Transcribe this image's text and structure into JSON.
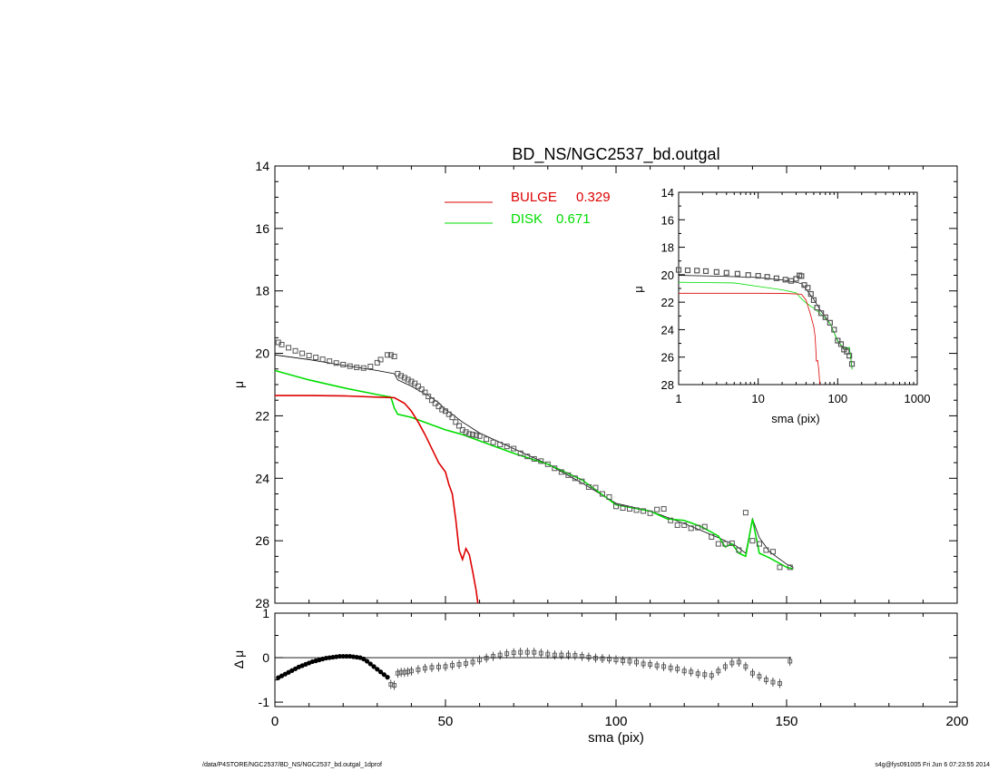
{
  "footer": {
    "path": "/data/P4STORE/NGC2537/BD_NS/NGC2537_bd.outgal_1dprof",
    "stamp": "s4g@fys091005  Fri Jun  6 07:23:55 2014"
  },
  "colors": {
    "bulge": "#dd0000",
    "disk": "#00dd00",
    "total": "#000000",
    "data": "#555555"
  },
  "chart_data": [
    {
      "panel": "main",
      "type": "line",
      "title": "BD_NS/NGC2537_bd.outgal",
      "ylabel": "μ",
      "xlim": [
        0,
        200
      ],
      "ylim": [
        28,
        14
      ],
      "yticks": [
        "14",
        "16",
        "18",
        "20",
        "22",
        "24",
        "26",
        "28"
      ],
      "grid": false,
      "legend_position": "top",
      "legend": [
        {
          "series": "bulge",
          "label": "BULGE",
          "value": "0.329"
        },
        {
          "series": "disk",
          "label": "DISK",
          "value": "0.671"
        }
      ],
      "observed": {
        "x": [
          1,
          2,
          4,
          6,
          8,
          10,
          12,
          14,
          16,
          18,
          20,
          22,
          24,
          26,
          28,
          30,
          31,
          33,
          34,
          35,
          36,
          37,
          38,
          39,
          40,
          41,
          42,
          43,
          44,
          45,
          46,
          47,
          48,
          49,
          50,
          51,
          52,
          53,
          54,
          55,
          56,
          57,
          58,
          59,
          60,
          62,
          64,
          66,
          68,
          70,
          72,
          74,
          76,
          78,
          80,
          82,
          84,
          86,
          88,
          90,
          92,
          94,
          96,
          98,
          100,
          102,
          104,
          106,
          108,
          110,
          112,
          114,
          116,
          118,
          120,
          122,
          124,
          126,
          128,
          130,
          132,
          134,
          136,
          138,
          140,
          142,
          144,
          146,
          148,
          151
        ],
        "y": [
          19.65,
          19.72,
          19.82,
          19.92,
          20.0,
          20.07,
          20.13,
          20.19,
          20.25,
          20.31,
          20.36,
          20.41,
          20.45,
          20.47,
          20.42,
          20.3,
          20.2,
          20.05,
          20.05,
          20.1,
          20.65,
          20.72,
          20.78,
          20.84,
          20.9,
          20.96,
          21.05,
          21.15,
          21.25,
          21.38,
          21.5,
          21.6,
          21.7,
          21.8,
          21.85,
          21.95,
          22.05,
          22.2,
          22.32,
          22.45,
          22.52,
          22.58,
          22.6,
          22.62,
          22.65,
          22.75,
          22.85,
          22.92,
          22.98,
          23.05,
          23.2,
          23.3,
          23.38,
          23.45,
          23.55,
          23.68,
          23.8,
          23.9,
          24.0,
          24.1,
          24.28,
          24.3,
          24.5,
          24.6,
          24.9,
          24.95,
          24.98,
          25.02,
          25.05,
          25.12,
          25.0,
          24.98,
          25.35,
          25.5,
          25.5,
          25.6,
          25.58,
          25.55,
          25.88,
          26.1,
          26.1,
          26.08,
          26.3,
          25.1,
          26.0,
          26.1,
          26.3,
          26.35,
          26.85,
          26.85
        ]
      },
      "total": {
        "x": [
          0,
          10,
          20,
          30,
          35,
          36,
          38,
          40,
          42,
          45,
          48,
          50,
          52,
          55,
          60,
          70,
          80,
          90,
          100,
          110,
          120,
          130,
          135,
          138,
          140,
          142,
          145,
          150,
          152
        ],
        "y": [
          20.05,
          20.2,
          20.38,
          20.55,
          20.65,
          20.85,
          20.95,
          21.05,
          21.18,
          21.35,
          21.58,
          21.8,
          21.95,
          22.2,
          22.55,
          23.05,
          23.55,
          24.15,
          24.8,
          25.05,
          25.45,
          25.9,
          26.15,
          26.4,
          25.3,
          25.9,
          26.35,
          26.75,
          26.85
        ]
      },
      "bulge": {
        "x": [
          0,
          10,
          20,
          30,
          35,
          38,
          40,
          42,
          44,
          46,
          48,
          50,
          51,
          52,
          53,
          54,
          55,
          56,
          57,
          58,
          59,
          59.5
        ],
        "y": [
          21.35,
          21.35,
          21.36,
          21.4,
          21.42,
          21.6,
          21.85,
          22.2,
          22.6,
          23.05,
          23.5,
          23.8,
          24.2,
          24.5,
          25.3,
          26.3,
          26.6,
          26.25,
          26.45,
          27.0,
          27.6,
          28.0
        ]
      },
      "disk": {
        "x": [
          0,
          10,
          20,
          30,
          34,
          35,
          36,
          40,
          45,
          50,
          55,
          60,
          70,
          80,
          90,
          100,
          105,
          110,
          115,
          120,
          125,
          130,
          132,
          134,
          136,
          138,
          140,
          142,
          145,
          150,
          152
        ],
        "y": [
          20.55,
          20.85,
          21.1,
          21.32,
          21.4,
          21.75,
          21.95,
          22.05,
          22.25,
          22.45,
          22.6,
          22.8,
          23.2,
          23.55,
          24.05,
          24.85,
          24.95,
          25.05,
          25.3,
          25.35,
          25.55,
          25.85,
          26.2,
          26.1,
          26.4,
          26.5,
          25.3,
          26.4,
          26.55,
          26.85,
          26.9
        ]
      }
    },
    {
      "panel": "inset",
      "type": "line",
      "xlabel": "sma (pix)",
      "ylabel": "μ",
      "xscale": "log",
      "xlim": [
        1,
        1000
      ],
      "ylim": [
        28,
        14
      ],
      "xticks": [
        "1",
        "10",
        "100",
        "1000"
      ],
      "yticks": [
        "14",
        "16",
        "18",
        "20",
        "22",
        "24",
        "26",
        "28"
      ],
      "observed": {
        "x": [
          1.0,
          1.3,
          1.7,
          2.2,
          3.0,
          4.0,
          5.5,
          7.5,
          10,
          13,
          17,
          22,
          26,
          30,
          33,
          35,
          38,
          42,
          46,
          50,
          55,
          62,
          70,
          80,
          90,
          100,
          110,
          120,
          130,
          140,
          151
        ],
        "y": [
          19.65,
          19.68,
          19.7,
          19.74,
          19.8,
          19.86,
          19.93,
          20.02,
          20.08,
          20.16,
          20.26,
          20.36,
          20.45,
          20.3,
          20.05,
          20.1,
          20.75,
          20.95,
          21.4,
          21.85,
          22.4,
          22.8,
          23.1,
          23.5,
          24.0,
          24.8,
          25.05,
          25.45,
          25.6,
          25.9,
          26.5
        ]
      },
      "total": {
        "x": [
          1,
          3,
          10,
          20,
          30,
          35,
          40,
          50,
          60,
          80,
          100,
          120,
          140,
          152
        ],
        "y": [
          20.05,
          20.1,
          20.2,
          20.38,
          20.55,
          20.65,
          21.05,
          21.8,
          22.55,
          23.55,
          24.8,
          25.45,
          25.3,
          26.85
        ]
      },
      "bulge": {
        "x": [
          1,
          5,
          10,
          20,
          30,
          35,
          40,
          45,
          50,
          52,
          54,
          56,
          58,
          59.5
        ],
        "y": [
          21.35,
          21.35,
          21.35,
          21.36,
          21.4,
          21.42,
          21.85,
          22.8,
          23.8,
          24.5,
          26.3,
          26.25,
          27.0,
          28.0
        ]
      },
      "disk": {
        "x": [
          1,
          5,
          10,
          20,
          30,
          35,
          40,
          50,
          60,
          80,
          100,
          120,
          140,
          152
        ],
        "y": [
          20.55,
          20.6,
          20.85,
          21.1,
          21.32,
          21.75,
          22.05,
          22.45,
          22.8,
          23.55,
          24.85,
          25.35,
          25.3,
          26.9
        ]
      }
    },
    {
      "panel": "residual",
      "type": "scatter",
      "xlabel": "sma (pix)",
      "ylabel": "Δ μ",
      "xlim": [
        0,
        200
      ],
      "ylim": [
        -1.1,
        1.0
      ],
      "xticks": [
        "0",
        "50",
        "100",
        "150",
        "200"
      ],
      "yticks": [
        "1",
        "0",
        "-1"
      ],
      "reference_line": 0,
      "x": [
        1,
        2,
        3,
        4,
        5,
        6,
        7,
        8,
        9,
        10,
        11,
        12,
        13,
        14,
        15,
        16,
        17,
        18,
        19,
        20,
        21,
        22,
        23,
        24,
        25,
        26,
        27,
        28,
        29,
        30,
        31,
        32,
        33,
        34,
        35,
        36,
        37,
        38,
        39,
        40,
        42,
        44,
        46,
        48,
        50,
        52,
        54,
        56,
        58,
        60,
        62,
        64,
        66,
        68,
        70,
        72,
        74,
        76,
        78,
        80,
        82,
        84,
        86,
        88,
        90,
        92,
        94,
        96,
        98,
        100,
        102,
        104,
        106,
        108,
        110,
        112,
        114,
        116,
        118,
        120,
        122,
        124,
        126,
        128,
        130,
        132,
        134,
        136,
        138,
        140,
        142,
        144,
        146,
        148,
        151
      ],
      "y": [
        -0.45,
        -0.41,
        -0.37,
        -0.33,
        -0.29,
        -0.25,
        -0.21,
        -0.18,
        -0.15,
        -0.12,
        -0.09,
        -0.07,
        -0.05,
        -0.03,
        -0.01,
        0.0,
        0.01,
        0.02,
        0.03,
        0.03,
        0.03,
        0.03,
        0.02,
        0.01,
        0.0,
        -0.03,
        -0.08,
        -0.14,
        -0.2,
        -0.26,
        -0.32,
        -0.38,
        -0.44,
        -0.6,
        -0.62,
        -0.35,
        -0.33,
        -0.33,
        -0.32,
        -0.3,
        -0.27,
        -0.24,
        -0.22,
        -0.21,
        -0.2,
        -0.17,
        -0.15,
        -0.13,
        -0.1,
        -0.05,
        -0.01,
        0.03,
        0.06,
        0.09,
        0.11,
        0.12,
        0.12,
        0.12,
        0.1,
        0.08,
        0.06,
        0.06,
        0.06,
        0.05,
        0.03,
        0.01,
        -0.01,
        -0.02,
        -0.03,
        -0.05,
        -0.07,
        -0.08,
        -0.1,
        -0.14,
        -0.15,
        -0.18,
        -0.2,
        -0.23,
        -0.25,
        -0.3,
        -0.32,
        -0.36,
        -0.38,
        -0.4,
        -0.3,
        -0.2,
        -0.12,
        -0.1,
        -0.2,
        -0.35,
        -0.42,
        -0.5,
        -0.55,
        -0.58,
        -0.08
      ]
    }
  ]
}
